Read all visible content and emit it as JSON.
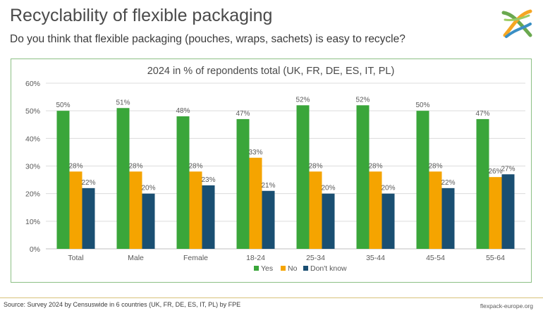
{
  "page": {
    "title": "Recyclability of flexible packaging",
    "subtitle": "Do you think that flexible packaging (pouches, wraps, sachets) is easy to recycle?"
  },
  "logo": {
    "icon": "flexpack-europe-logo-icon",
    "colors": [
      "#6aa84f",
      "#f5a623",
      "#3b8fc4"
    ]
  },
  "chart_data": {
    "type": "bar",
    "title": "2024 in % of repondents total (UK, FR, DE, ES, IT, PL)",
    "categories": [
      "Total",
      "Male",
      "Female",
      "18-24",
      "25-34",
      "35-44",
      "45-54",
      "55-64"
    ],
    "series": [
      {
        "name": "Yes",
        "color": "#3aa63a",
        "values": [
          50,
          51,
          48,
          47,
          52,
          52,
          50,
          47
        ],
        "labels": [
          "50%",
          "51%",
          "48%",
          "47%",
          "52%",
          "52%",
          "50%",
          "47%"
        ]
      },
      {
        "name": "No",
        "color": "#f5a400",
        "values": [
          28,
          28,
          28,
          33,
          28,
          28,
          28,
          26
        ],
        "labels": [
          "28%",
          "28%",
          "28%",
          "33%",
          "28%",
          "28%",
          "28%",
          "26%"
        ]
      },
      {
        "name": "Don't know",
        "color": "#1a4f72",
        "values": [
          22,
          20,
          23,
          21,
          20,
          20,
          22,
          27
        ],
        "labels": [
          "22%",
          "20%",
          "23%",
          "21%",
          "20%",
          "20%",
          "22%",
          "27%"
        ]
      }
    ],
    "ylim": [
      0,
      60
    ],
    "yticks": [
      "0%",
      "10%",
      "20%",
      "30%",
      "40%",
      "50%",
      "60%"
    ],
    "grid": true,
    "legend": "bottom-center"
  },
  "footer": {
    "source": "Source: Survey 2024 by Censuswide in 6 countries (UK, FR, DE, ES, IT, PL) by FPE",
    "site": "flexpack-europe.org"
  }
}
